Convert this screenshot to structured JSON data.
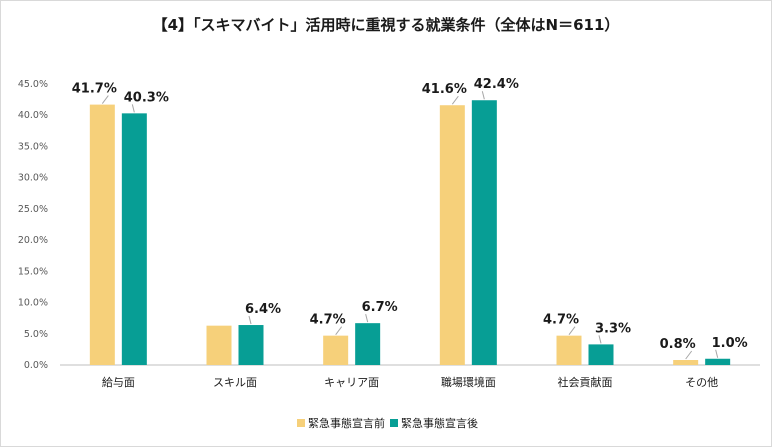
{
  "chart_data": {
    "type": "bar",
    "title": "【4】「スキマバイト」活用時に重視する就業条件（全体はN＝611）",
    "categories": [
      "給与面",
      "スキル面",
      "キャリア面",
      "職場環境面",
      "社会貢献面",
      "その他"
    ],
    "series": [
      {
        "name": "緊急事態宣言前",
        "values": [
          41.7,
          6.3,
          4.7,
          41.6,
          4.7,
          0.8
        ],
        "color": "#f6d07a"
      },
      {
        "name": "緊急事態宣言後",
        "values": [
          40.3,
          6.4,
          6.7,
          42.4,
          3.3,
          1.0
        ],
        "color": "#079e95"
      }
    ],
    "data_labels": [
      [
        "41.7%",
        "",
        "4.7%",
        "41.6%",
        "4.7%",
        "0.8%"
      ],
      [
        "40.3%",
        "6.4%",
        "6.7%",
        "42.4%",
        "3.3%",
        "1.0%"
      ]
    ],
    "y_ticks": [
      "0.0%",
      "5.0%",
      "10.0%",
      "15.0%",
      "20.0%",
      "25.0%",
      "30.0%",
      "35.0%",
      "40.0%",
      "45.0%"
    ],
    "ylim": [
      0,
      45
    ],
    "grid": false,
    "legend": "bottom"
  }
}
